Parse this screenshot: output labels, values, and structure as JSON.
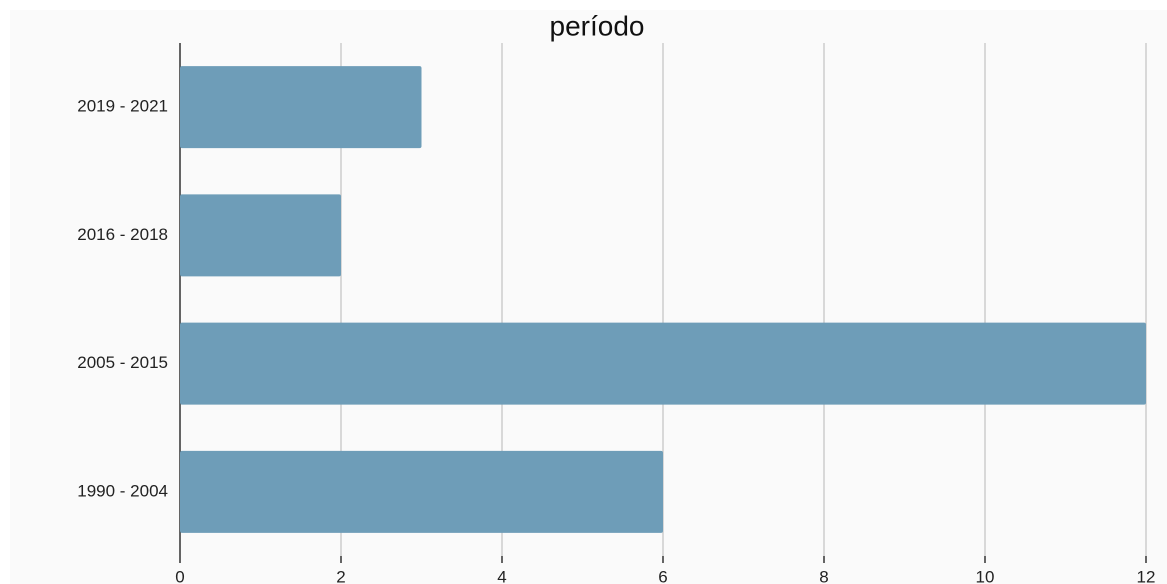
{
  "chart_data": {
    "type": "bar",
    "orientation": "horizontal",
    "title": "período",
    "categories": [
      "2019 - 2021",
      "2016 - 2018",
      "2005 - 2015",
      "1990 - 2004"
    ],
    "values": [
      3,
      2,
      12,
      6
    ],
    "color": "#6e9db8",
    "xlim": [
      0,
      12
    ],
    "xticks": [
      0,
      2,
      4,
      6,
      8,
      10,
      12
    ],
    "grid": true
  }
}
